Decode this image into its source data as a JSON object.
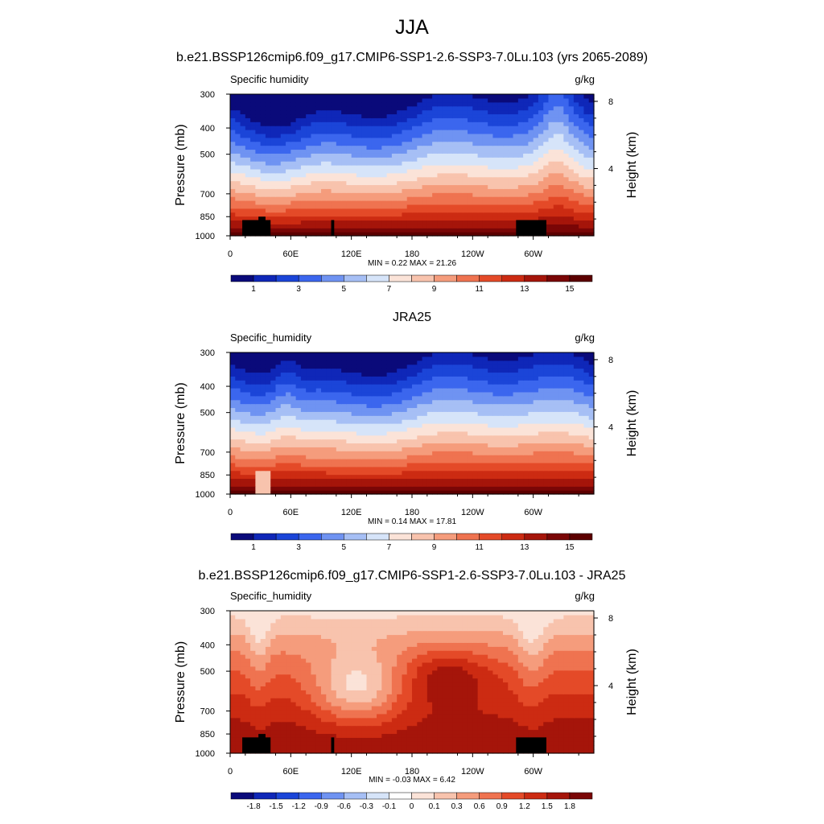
{
  "page": {
    "title": "JJA"
  },
  "chart_data": [
    {
      "type": "heatmap",
      "title": "b.e21.BSSP126cmip6.f09_g17.CMIP6-SSP1-2.6-SSP3-7.0Lu.103 (yrs 2065-2089)",
      "variable": "Specific humidity",
      "units": "g/kg",
      "ylabel": "Pressure (mb)",
      "y2label": "Height (km)",
      "xticks": [
        "0",
        "60E",
        "120E",
        "180",
        "120W",
        "60W"
      ],
      "yticks": [
        "300",
        "400",
        "500",
        "700",
        "850",
        "1000"
      ],
      "y2ticks": [
        "8",
        "4"
      ],
      "ylim": [
        1000,
        300
      ],
      "xlim": [
        0,
        360
      ],
      "stats": "MIN =   0.22  MAX =  21.26",
      "min": 0.22,
      "max": 21.26,
      "colorbar_labels": [
        "1",
        "3",
        "5",
        "7",
        "9",
        "11",
        "13",
        "15"
      ],
      "levels": [
        1,
        2,
        3,
        4,
        5,
        6,
        7,
        8,
        9,
        10,
        11,
        12,
        13,
        14,
        15
      ],
      "colors": [
        "#0a0a7a",
        "#0f27b8",
        "#1b45d8",
        "#3b66ee",
        "#6f93f2",
        "#a6bff5",
        "#d6e4f9",
        "#fbe3d8",
        "#f8c3ad",
        "#f59c7c",
        "#ef7350",
        "#e44a28",
        "#cc2b12",
        "#a5150a",
        "#7a0606",
        "#5c0000"
      ]
    },
    {
      "type": "heatmap",
      "title": "JRA25",
      "variable": "Specific_humidity",
      "units": "g/kg",
      "ylabel": "Pressure (mb)",
      "y2label": "Height (km)",
      "xticks": [
        "0",
        "60E",
        "120E",
        "180",
        "120W",
        "60W"
      ],
      "yticks": [
        "300",
        "400",
        "500",
        "700",
        "850",
        "1000"
      ],
      "y2ticks": [
        "8",
        "4"
      ],
      "ylim": [
        1000,
        300
      ],
      "xlim": [
        0,
        360
      ],
      "stats": "MIN =   0.14  MAX =  17.81",
      "min": 0.14,
      "max": 17.81,
      "colorbar_labels": [
        "1",
        "3",
        "5",
        "7",
        "9",
        "11",
        "13",
        "15"
      ],
      "levels": [
        1,
        2,
        3,
        4,
        5,
        6,
        7,
        8,
        9,
        10,
        11,
        12,
        13,
        14,
        15
      ],
      "colors": [
        "#0a0a7a",
        "#0f27b8",
        "#1b45d8",
        "#3b66ee",
        "#6f93f2",
        "#a6bff5",
        "#d6e4f9",
        "#fbe3d8",
        "#f8c3ad",
        "#f59c7c",
        "#ef7350",
        "#e44a28",
        "#cc2b12",
        "#a5150a",
        "#7a0606",
        "#5c0000"
      ]
    },
    {
      "type": "heatmap",
      "title": "b.e21.BSSP126cmip6.f09_g17.CMIP6-SSP1-2.6-SSP3-7.0Lu.103 - JRA25",
      "variable": "Specific_humidity",
      "units": "g/kg",
      "ylabel": "Pressure (mb)",
      "y2label": "Height (km)",
      "xticks": [
        "0",
        "60E",
        "120E",
        "180",
        "120W",
        "60W"
      ],
      "yticks": [
        "300",
        "400",
        "500",
        "700",
        "850",
        "1000"
      ],
      "y2ticks": [
        "8",
        "4"
      ],
      "ylim": [
        1000,
        300
      ],
      "xlim": [
        0,
        360
      ],
      "stats": "MIN =  -0.03  MAX =   6.42",
      "min": -0.03,
      "max": 6.42,
      "colorbar_labels": [
        "-1.8",
        "-1.5",
        "-1.2",
        "-0.9",
        "-0.6",
        "-0.3",
        "-0.1",
        "0",
        "0.1",
        "0.3",
        "0.6",
        "0.9",
        "1.2",
        "1.5",
        "1.8"
      ],
      "levels": [
        -1.8,
        -1.5,
        -1.2,
        -0.9,
        -0.6,
        -0.3,
        -0.1,
        0,
        0.1,
        0.3,
        0.6,
        0.9,
        1.2,
        1.5,
        1.8
      ],
      "colors": [
        "#0a0a7a",
        "#0f27b8",
        "#1b45d8",
        "#3b66ee",
        "#6f93f2",
        "#a6bff5",
        "#d6e4f9",
        "#ffffff",
        "#fbe3d8",
        "#f8c3ad",
        "#f59c7c",
        "#ef7350",
        "#e44a28",
        "#cc2b12",
        "#a5150a",
        "#7a0606"
      ]
    }
  ]
}
